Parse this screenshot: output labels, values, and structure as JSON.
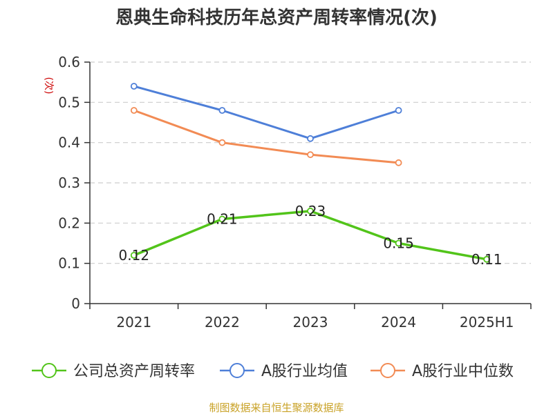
{
  "chart_data": {
    "type": "line",
    "title": "恩典生命科技历年总资产周转率情况(次)",
    "ylabel": "(次)",
    "xlabel": "",
    "categories": [
      "2021",
      "2022",
      "2023",
      "2024",
      "2025H1"
    ],
    "ylim": [
      0,
      0.6
    ],
    "yticks": [
      "0",
      "0.1",
      "0.2",
      "0.3",
      "0.4",
      "0.5",
      "0.6"
    ],
    "grid": true,
    "legend_position": "bottom",
    "series": [
      {
        "name": "公司总资产周转率",
        "color": "#52c41a",
        "values": [
          0.12,
          0.21,
          0.23,
          0.15,
          0.11
        ],
        "labels": [
          "0.12",
          "0.21",
          "0.23",
          "0.15",
          "0.11"
        ]
      },
      {
        "name": "A股行业均值",
        "color": "#4e7fd8",
        "values": [
          0.54,
          0.48,
          0.41,
          0.48,
          null
        ]
      },
      {
        "name": "A股行业中位数",
        "color": "#f28b54",
        "values": [
          0.48,
          0.4,
          0.37,
          0.35,
          null
        ]
      }
    ]
  },
  "source": "制图数据来自恒生聚源数据库"
}
